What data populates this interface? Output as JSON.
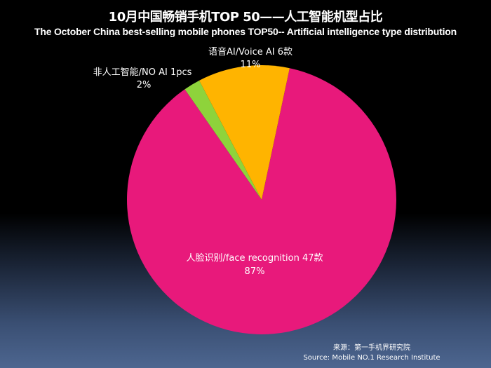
{
  "title": "10月中国畅销手机TOP 50——人工智能机型占比",
  "subtitle": "The  October  China  best-selling  mobile  phones  TOP50-- Artificial intelligence type distribution",
  "source": {
    "line1": "来源：第一手机界研究院",
    "line2": "Source: Mobile NO.1 Research Institute"
  },
  "chart_data": {
    "type": "pie",
    "start_angle_deg": 12,
    "slices": [
      {
        "name": "人脸识别/face recognition 47款",
        "percent_label": "87%",
        "value": 87,
        "color": "#e8197b"
      },
      {
        "name": "非人工智能/NO AI 1pcs",
        "percent_label": "2%",
        "value": 2,
        "color": "#8ed33b"
      },
      {
        "name": "语音AI/Voice AI  6款",
        "percent_label": "11%",
        "value": 11,
        "color": "#ffb400"
      }
    ],
    "legend": "none",
    "labels": "outside-and-inside"
  }
}
